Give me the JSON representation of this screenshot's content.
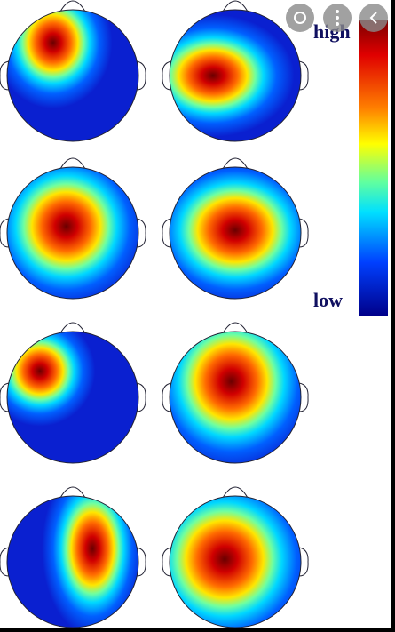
{
  "colorbar": {
    "high": "high",
    "low": "low"
  }
}
